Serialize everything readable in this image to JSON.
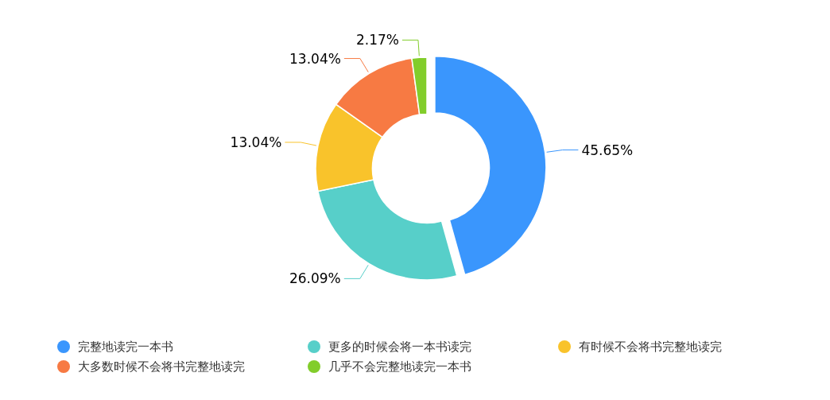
{
  "chart_data": {
    "type": "donut",
    "categories": [
      "完整地读完一本书",
      "更多的时候会将一本书读完",
      "有时候不会将书完整地读完",
      "大多数时候不会将书完整地读完",
      "几乎不会完整地读完一本书"
    ],
    "values": [
      45.65,
      26.09,
      13.04,
      13.04,
      2.17
    ],
    "colors": [
      "#3a96fd",
      "#57cfc9",
      "#f9c32b",
      "#f77a43",
      "#82cd2b"
    ],
    "value_labels": [
      "45.65%",
      "26.09%",
      "13.04%",
      "13.04%",
      "2.17%"
    ],
    "legend": "bottom"
  }
}
